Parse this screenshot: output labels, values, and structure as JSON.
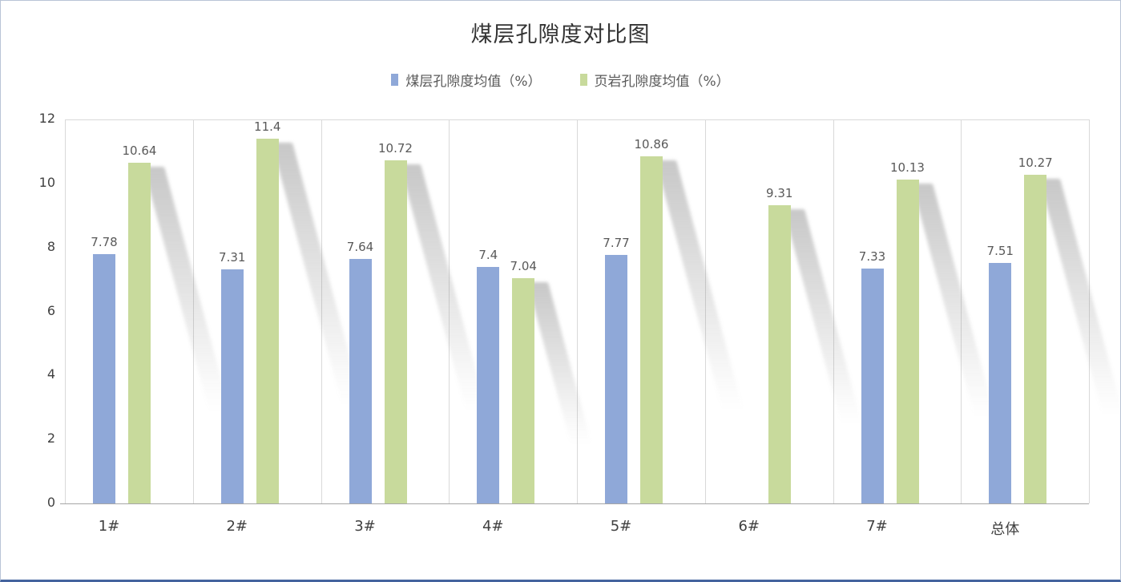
{
  "chart_data": {
    "type": "bar",
    "title": "煤层孔隙度对比图",
    "categories": [
      "1#",
      "2#",
      "3#",
      "4#",
      "5#",
      "6#",
      "7#",
      "总体"
    ],
    "series": [
      {
        "name": "煤层孔隙度均值（%）",
        "color": "#8fa8d8",
        "values": [
          7.78,
          7.31,
          7.64,
          7.4,
          7.77,
          null,
          7.33,
          7.51
        ]
      },
      {
        "name": "页岩孔隙度均值（%）",
        "color": "#c8da9c",
        "values": [
          10.64,
          11.4,
          10.72,
          7.04,
          10.86,
          9.31,
          10.13,
          10.27
        ]
      }
    ],
    "ylim": [
      0,
      12
    ],
    "yticks": [
      0,
      2,
      4,
      6,
      8,
      10,
      12
    ],
    "grid": "vertical-column-separators-only",
    "legend_position": "top",
    "colors": {
      "gridline": "#d9d9d9",
      "axis_line": "#a6a6a6",
      "value_label": "#595959",
      "tick_text": "#404040"
    }
  }
}
